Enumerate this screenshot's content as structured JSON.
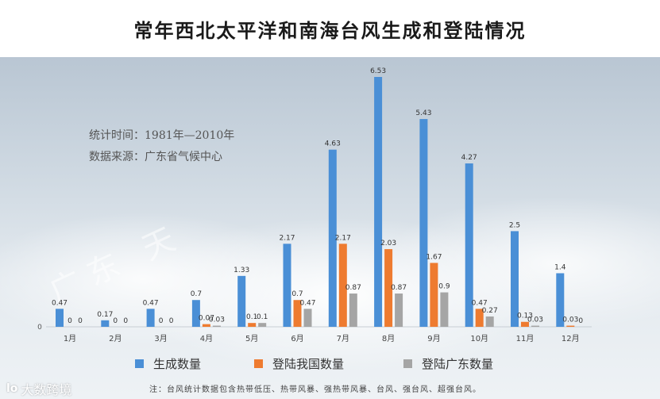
{
  "title": "常年西北太平洋和南海台风生成和登陆情况",
  "info": {
    "period": "统计时间：1981年—2010年",
    "source": "数据来源：广东省气候中心"
  },
  "watermark": "广东 天",
  "footnote": "注：台风统计数据包含热带低压、热带风暴、强热带风暴、台风、强台风、超强台风。",
  "brand": {
    "icon": "lo",
    "name": "大数跨境"
  },
  "chart_data": {
    "type": "bar",
    "title": "常年西北太平洋和南海台风生成和登陆情况",
    "categories": [
      "1月",
      "2月",
      "3月",
      "4月",
      "5月",
      "6月",
      "7月",
      "8月",
      "9月",
      "10月",
      "11月",
      "12月"
    ],
    "series": [
      {
        "name": "生成数量",
        "color": "#4a8fd6",
        "values": [
          0.47,
          0.17,
          0.47,
          0.7,
          1.33,
          2.17,
          4.63,
          6.53,
          5.43,
          4.27,
          2.5,
          1.4
        ],
        "labels": [
          "0.47",
          "0.17",
          "0.47",
          "0.7",
          "1.33",
          "2.17",
          "4.63",
          "6.53",
          "5.43",
          "4.27",
          "2.5",
          "1.4"
        ]
      },
      {
        "name": "登陆我国数量",
        "color": "#ee7b30",
        "values": [
          0,
          0,
          0,
          0.07,
          0.1,
          0.7,
          2.17,
          2.03,
          1.67,
          0.47,
          0.13,
          0.03
        ],
        "labels": [
          "0",
          "0",
          "0",
          "0.07",
          "0.1",
          "0.7",
          "2.17",
          "2.03",
          "1.67",
          "0.47",
          "0.13",
          "0.03"
        ]
      },
      {
        "name": "登陆广东数量",
        "color": "#a5a5a5",
        "values": [
          0,
          0,
          0,
          0.03,
          0.1,
          0.47,
          0.87,
          0.87,
          0.9,
          0.27,
          0.03,
          0
        ],
        "labels": [
          "0",
          "0",
          "0",
          "0.03",
          "0.1",
          "0.47",
          "0.87",
          "0.87",
          "0.9",
          "0.27",
          "0.03",
          "0"
        ]
      }
    ],
    "yaxis_tick": "0",
    "ylim": [
      0,
      6.53
    ],
    "grid": false,
    "legend_position": "bottom"
  }
}
